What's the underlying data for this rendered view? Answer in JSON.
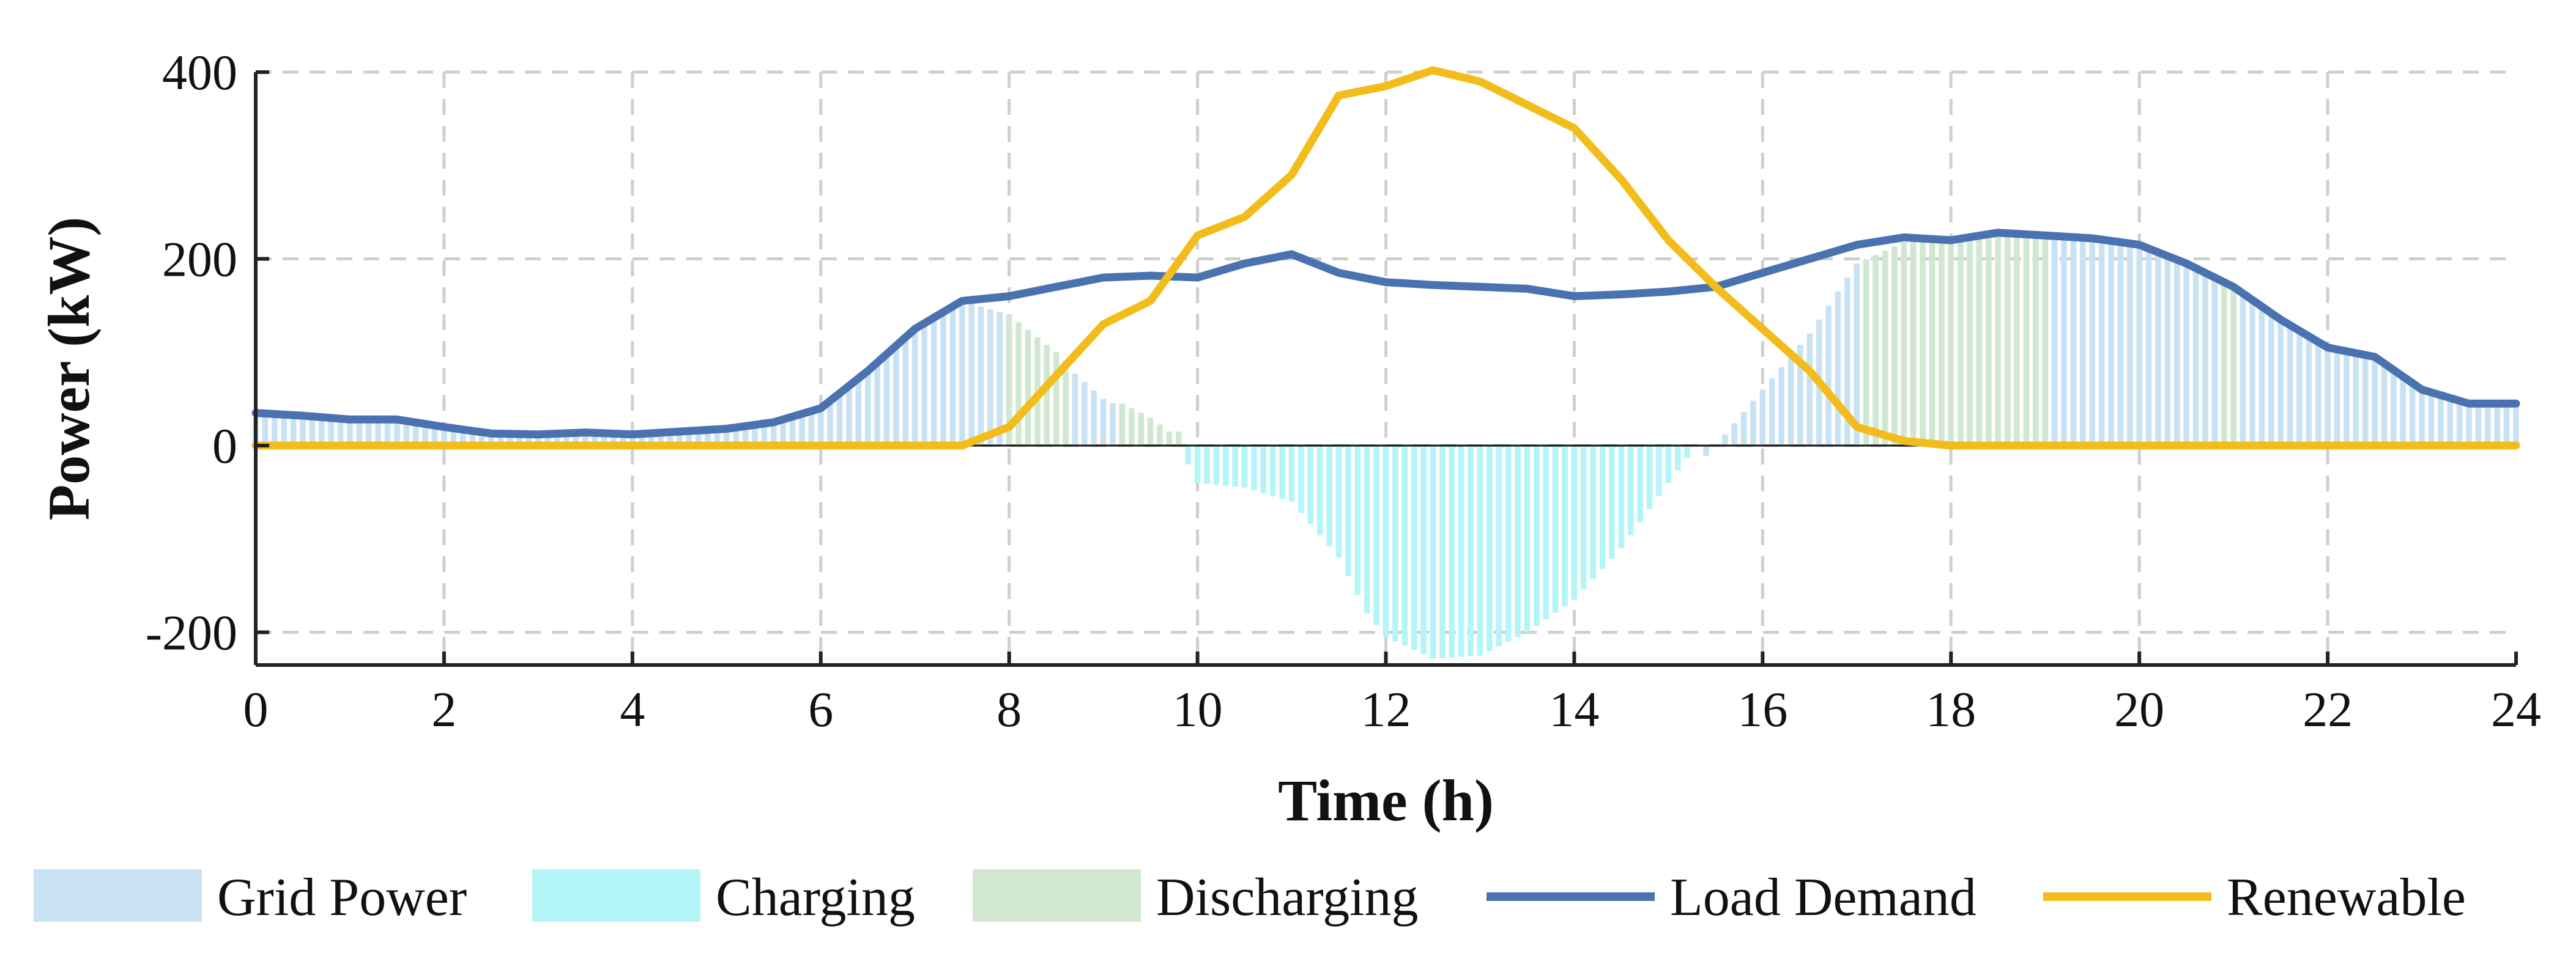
{
  "chart_data": {
    "type": "line",
    "title": "",
    "xlabel": "Time (h)",
    "ylabel": "Power (kW)",
    "xlim": [
      0,
      24
    ],
    "ylim": [
      -235,
      400
    ],
    "x_ticks": [
      0,
      2,
      4,
      6,
      8,
      10,
      12,
      14,
      16,
      18,
      20,
      22,
      24
    ],
    "y_ticks": [
      -200,
      0,
      200,
      400
    ],
    "x_tick_labels": [
      "0",
      "2",
      "4",
      "6",
      "8",
      "10",
      "12",
      "14",
      "16",
      "18",
      "20",
      "22",
      "24"
    ],
    "y_tick_labels": [
      "-200",
      "0",
      "200",
      "400"
    ],
    "grid": true,
    "legend_position": "bottom",
    "bar_step_h": 0.1,
    "series": [
      {
        "name": "Load Demand",
        "kind": "line",
        "color": "#4A72B0",
        "x": [
          0,
          0.5,
          1,
          1.5,
          2,
          2.5,
          3,
          3.5,
          4,
          4.5,
          5,
          5.5,
          6,
          6.5,
          7,
          7.5,
          8,
          8.5,
          9,
          9.5,
          10,
          10.5,
          11,
          11.5,
          12,
          12.5,
          13,
          13.5,
          14,
          14.5,
          15,
          15.5,
          16,
          16.5,
          17,
          17.5,
          18,
          18.5,
          19,
          19.5,
          20,
          20.5,
          21,
          21.5,
          22,
          22.5,
          23,
          23.5,
          24
        ],
        "values": [
          35,
          32,
          28,
          28,
          20,
          13,
          12,
          14,
          12,
          15,
          18,
          25,
          40,
          80,
          125,
          155,
          160,
          170,
          180,
          182,
          180,
          195,
          205,
          185,
          175,
          172,
          170,
          168,
          160,
          162,
          165,
          170,
          185,
          200,
          215,
          223,
          220,
          228,
          225,
          222,
          215,
          195,
          170,
          135,
          105,
          95,
          60,
          45,
          45
        ]
      },
      {
        "name": "Renewable",
        "kind": "line",
        "color": "#F2BC1B",
        "x": [
          0,
          7.5,
          8,
          8.5,
          9,
          9.5,
          10,
          10.5,
          11,
          11.5,
          12,
          12.5,
          13,
          13.5,
          14,
          14.5,
          15,
          15.5,
          16,
          16.5,
          17,
          17.5,
          18,
          24
        ],
        "values": [
          0,
          0,
          20,
          75,
          130,
          155,
          225,
          245,
          290,
          375,
          385,
          402,
          390,
          365,
          340,
          285,
          220,
          170,
          125,
          80,
          20,
          5,
          0,
          0
        ]
      },
      {
        "name": "Grid Power",
        "kind": "bar",
        "color": "#C9E2F3",
        "x": [
          0,
          1,
          2,
          3,
          4,
          5,
          6,
          6.5,
          7,
          7.5,
          7.9
        ],
        "values": [
          35,
          28,
          20,
          12,
          12,
          18,
          40,
          80,
          125,
          155,
          148
        ]
      },
      {
        "name": "Discharging",
        "kind": "bar",
        "color": "#CFE8CF",
        "x": [
          8,
          8.5,
          9,
          9.5,
          9.7
        ],
        "values": [
          140,
          100,
          55,
          30,
          15
        ]
      },
      {
        "name": "Charging",
        "kind": "bar",
        "color": "#B4F5F7",
        "x": [
          9.8,
          10,
          10.5,
          11,
          11.5,
          11.8,
          12,
          12.5,
          13,
          13.5,
          14,
          14.5,
          15,
          15.3
        ],
        "values": [
          0,
          -40,
          -45,
          -60,
          -120,
          -180,
          -205,
          -228,
          -225,
          -200,
          -165,
          -110,
          -40,
          0
        ]
      }
    ],
    "bar_bands": [
      {
        "series": "Grid Power",
        "start": 0,
        "end": 7.9
      },
      {
        "series": "Discharging",
        "start": 8,
        "end": 8.6
      },
      {
        "series": "Grid Power",
        "start": 8.7,
        "end": 9.1
      },
      {
        "series": "Discharging",
        "start": 9.2,
        "end": 9.8
      },
      {
        "series": "Charging",
        "start": 9.9,
        "end": 15.3
      },
      {
        "series": "Grid Power",
        "start": 15.4,
        "end": 17.0
      },
      {
        "series": "Discharging",
        "start": 17.1,
        "end": 19.0
      },
      {
        "series": "Grid Power",
        "start": 19.1,
        "end": 20.8
      },
      {
        "series": "Discharging",
        "start": 20.9,
        "end": 21.0
      },
      {
        "series": "Grid Power",
        "start": 21.1,
        "end": 24
      }
    ],
    "legend": [
      "Grid Power",
      "Charging",
      "Discharging",
      "Load Demand",
      "Renewable"
    ]
  }
}
